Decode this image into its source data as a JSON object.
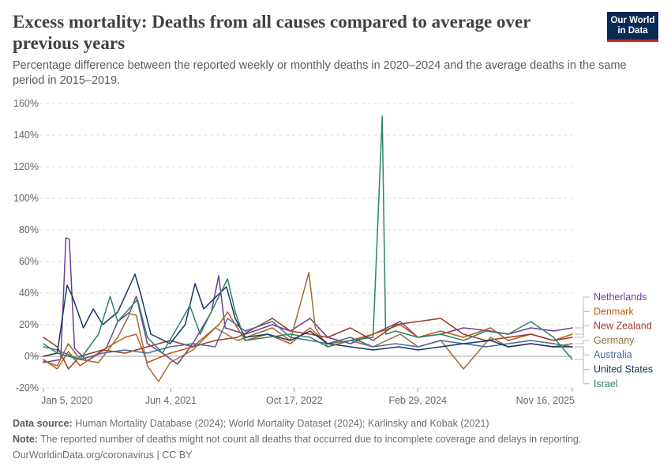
{
  "header": {
    "title": "Excess mortality: Deaths from all causes compared to average over previous years",
    "subtitle": "Percentage difference between the reported weekly or monthly deaths in 2020–2024 and the average deaths in the same period in 2015–2019.",
    "logo_line1": "Our World",
    "logo_line2": "in Data"
  },
  "footer": {
    "source_label": "Data source:",
    "source_text": "Human Mortality Database (2024); World Mortality Dataset (2024); Karlinsky and Kobak (2021)",
    "note_label": "Note:",
    "note_text": "The reported number of deaths might not count all deaths that occurred due to incomplete coverage and delays in reporting.",
    "attribution": "OurWorldinData.org/coronavirus | CC BY"
  },
  "chart_data": {
    "type": "line",
    "x_start": "2020-01-05",
    "x_end": "2025-11-16",
    "x_ticks": [
      {
        "date": "2020-01-05",
        "label": "Jan 5, 2020"
      },
      {
        "date": "2021-06-04",
        "label": "Jun 4, 2021"
      },
      {
        "date": "2022-10-17",
        "label": "Oct 17, 2022"
      },
      {
        "date": "2024-02-29",
        "label": "Feb 29, 2024"
      },
      {
        "date": "2025-11-16",
        "label": "Nov 16, 2025"
      }
    ],
    "y_ticks": [
      -20,
      0,
      20,
      40,
      60,
      80,
      100,
      120,
      140,
      160
    ],
    "y_tick_labels": [
      "-20%",
      "0%",
      "20%",
      "40%",
      "60%",
      "80%",
      "100%",
      "120%",
      "140%",
      "160%"
    ],
    "ylim": [
      -20,
      160
    ],
    "unit": "%",
    "grid": true,
    "legend_position": "right",
    "series": [
      {
        "name": "Netherlands",
        "color": "#6d3e91",
        "points": [
          [
            "2020-01-05",
            -4
          ],
          [
            "2020-03-15",
            -2
          ],
          [
            "2020-04-05",
            75
          ],
          [
            "2020-04-19",
            74
          ],
          [
            "2020-05-10",
            5
          ],
          [
            "2020-07-01",
            -3
          ],
          [
            "2020-09-15",
            5
          ],
          [
            "2020-11-01",
            22
          ],
          [
            "2020-12-20",
            28
          ],
          [
            "2021-01-15",
            38
          ],
          [
            "2021-03-01",
            8
          ],
          [
            "2021-05-01",
            2
          ],
          [
            "2021-07-01",
            -5
          ],
          [
            "2021-09-01",
            8
          ],
          [
            "2021-11-15",
            28
          ],
          [
            "2021-12-15",
            51
          ],
          [
            "2022-01-10",
            18
          ],
          [
            "2022-04-01",
            14
          ],
          [
            "2022-07-20",
            20
          ],
          [
            "2022-10-01",
            16
          ],
          [
            "2022-12-20",
            24
          ],
          [
            "2023-03-01",
            12
          ],
          [
            "2023-06-01",
            8
          ],
          [
            "2023-09-01",
            14
          ],
          [
            "2023-12-20",
            22
          ],
          [
            "2024-03-01",
            12
          ],
          [
            "2024-06-01",
            14
          ],
          [
            "2024-09-01",
            18
          ],
          [
            "2024-12-20",
            16
          ],
          [
            "2025-03-01",
            14
          ],
          [
            "2025-06-01",
            18
          ],
          [
            "2025-09-01",
            16
          ],
          [
            "2025-11-16",
            18
          ]
        ]
      },
      {
        "name": "Denmark",
        "color": "#c05917",
        "points": [
          [
            "2020-01-05",
            -2
          ],
          [
            "2020-03-01",
            -8
          ],
          [
            "2020-04-15",
            3
          ],
          [
            "2020-06-01",
            -6
          ],
          [
            "2020-09-01",
            4
          ],
          [
            "2020-12-01",
            12
          ],
          [
            "2021-01-15",
            14
          ],
          [
            "2021-03-01",
            -4
          ],
          [
            "2021-06-01",
            2
          ],
          [
            "2021-09-01",
            6
          ],
          [
            "2021-12-15",
            20
          ],
          [
            "2022-01-20",
            28
          ],
          [
            "2022-04-01",
            10
          ],
          [
            "2022-07-01",
            14
          ],
          [
            "2022-10-01",
            8
          ],
          [
            "2022-12-20",
            18
          ],
          [
            "2023-03-01",
            8
          ],
          [
            "2023-06-01",
            10
          ],
          [
            "2023-09-01",
            14
          ],
          [
            "2023-12-20",
            20
          ],
          [
            "2024-03-01",
            12
          ],
          [
            "2024-06-01",
            16
          ],
          [
            "2024-09-01",
            12
          ],
          [
            "2024-12-20",
            18
          ],
          [
            "2025-03-01",
            10
          ],
          [
            "2025-06-01",
            14
          ],
          [
            "2025-09-01",
            10
          ],
          [
            "2025-11-16",
            14
          ]
        ]
      },
      {
        "name": "New Zealand",
        "color": "#9a3b2d",
        "points": [
          [
            "2020-01-05",
            12
          ],
          [
            "2020-03-01",
            6
          ],
          [
            "2020-04-15",
            -8
          ],
          [
            "2020-06-01",
            0
          ],
          [
            "2020-09-01",
            4
          ],
          [
            "2020-12-01",
            2
          ],
          [
            "2021-03-01",
            6
          ],
          [
            "2021-06-01",
            10
          ],
          [
            "2021-09-01",
            6
          ],
          [
            "2021-12-01",
            10
          ],
          [
            "2022-03-01",
            12
          ],
          [
            "2022-07-20",
            24
          ],
          [
            "2022-10-01",
            16
          ],
          [
            "2022-12-20",
            14
          ],
          [
            "2023-03-01",
            12
          ],
          [
            "2023-06-01",
            18
          ],
          [
            "2023-09-01",
            10
          ],
          [
            "2023-12-01",
            20
          ],
          [
            "2024-03-01",
            22
          ],
          [
            "2024-06-01",
            24
          ],
          [
            "2024-09-01",
            14
          ],
          [
            "2024-12-01",
            10
          ],
          [
            "2025-03-01",
            12
          ],
          [
            "2025-06-01",
            14
          ],
          [
            "2025-09-01",
            10
          ],
          [
            "2025-11-16",
            12
          ]
        ]
      },
      {
        "name": "Germany",
        "color": "#996d39",
        "points": [
          [
            "2020-01-05",
            -3
          ],
          [
            "2020-03-01",
            -6
          ],
          [
            "2020-04-15",
            8
          ],
          [
            "2020-06-01",
            -2
          ],
          [
            "2020-08-15",
            -4
          ],
          [
            "2020-11-01",
            12
          ],
          [
            "2020-12-20",
            27
          ],
          [
            "2021-01-15",
            26
          ],
          [
            "2021-03-01",
            -6
          ],
          [
            "2021-04-15",
            -16
          ],
          [
            "2021-06-01",
            -4
          ],
          [
            "2021-09-01",
            4
          ],
          [
            "2021-12-01",
            18
          ],
          [
            "2022-03-01",
            10
          ],
          [
            "2022-07-20",
            18
          ],
          [
            "2022-10-01",
            10
          ],
          [
            "2022-12-15",
            53
          ],
          [
            "2023-01-10",
            18
          ],
          [
            "2023-03-01",
            6
          ],
          [
            "2023-06-01",
            10
          ],
          [
            "2023-09-01",
            6
          ],
          [
            "2023-12-20",
            14
          ],
          [
            "2024-03-01",
            6
          ],
          [
            "2024-06-01",
            10
          ],
          [
            "2024-09-01",
            -8
          ],
          [
            "2024-12-20",
            12
          ],
          [
            "2025-03-01",
            6
          ],
          [
            "2025-06-01",
            8
          ],
          [
            "2025-09-01",
            6
          ],
          [
            "2025-11-16",
            8
          ]
        ]
      },
      {
        "name": "Australia",
        "color": "#4c6a9c",
        "points": [
          [
            "2020-01-05",
            6
          ],
          [
            "2020-03-01",
            4
          ],
          [
            "2020-06-01",
            -2
          ],
          [
            "2020-09-01",
            2
          ],
          [
            "2020-12-01",
            4
          ],
          [
            "2021-03-01",
            2
          ],
          [
            "2021-06-01",
            6
          ],
          [
            "2021-09-01",
            8
          ],
          [
            "2021-12-01",
            6
          ],
          [
            "2022-01-20",
            24
          ],
          [
            "2022-04-01",
            16
          ],
          [
            "2022-07-20",
            22
          ],
          [
            "2022-10-01",
            12
          ],
          [
            "2022-12-20",
            10
          ],
          [
            "2023-03-01",
            8
          ],
          [
            "2023-06-01",
            12
          ],
          [
            "2023-09-01",
            6
          ],
          [
            "2023-12-01",
            8
          ],
          [
            "2024-03-01",
            6
          ],
          [
            "2024-06-01",
            10
          ],
          [
            "2024-09-01",
            8
          ],
          [
            "2024-12-01",
            6
          ],
          [
            "2025-03-01",
            8
          ],
          [
            "2025-06-01",
            10
          ],
          [
            "2025-09-01",
            8
          ],
          [
            "2025-11-16",
            6
          ]
        ]
      },
      {
        "name": "United States",
        "color": "#18375f",
        "points": [
          [
            "2020-01-05",
            0
          ],
          [
            "2020-03-01",
            2
          ],
          [
            "2020-04-10",
            45
          ],
          [
            "2020-05-01",
            38
          ],
          [
            "2020-06-15",
            18
          ],
          [
            "2020-07-25",
            30
          ],
          [
            "2020-09-01",
            20
          ],
          [
            "2020-11-01",
            28
          ],
          [
            "2021-01-10",
            52
          ],
          [
            "2021-02-01",
            40
          ],
          [
            "2021-03-15",
            14
          ],
          [
            "2021-06-01",
            8
          ],
          [
            "2021-08-01",
            20
          ],
          [
            "2021-09-10",
            46
          ],
          [
            "2021-10-15",
            30
          ],
          [
            "2022-01-15",
            44
          ],
          [
            "2022-02-20",
            24
          ],
          [
            "2022-04-01",
            12
          ],
          [
            "2022-07-01",
            14
          ],
          [
            "2022-10-01",
            10
          ],
          [
            "2022-12-20",
            16
          ],
          [
            "2023-03-01",
            8
          ],
          [
            "2023-06-01",
            6
          ],
          [
            "2023-09-01",
            4
          ],
          [
            "2023-12-15",
            6
          ],
          [
            "2024-03-01",
            4
          ],
          [
            "2024-06-01",
            6
          ],
          [
            "2024-09-01",
            8
          ],
          [
            "2024-12-20",
            10
          ],
          [
            "2025-03-01",
            6
          ],
          [
            "2025-06-01",
            8
          ],
          [
            "2025-09-01",
            6
          ],
          [
            "2025-11-16",
            6
          ]
        ]
      },
      {
        "name": "Israel",
        "color": "#2c8465",
        "points": [
          [
            "2020-01-05",
            8
          ],
          [
            "2020-03-01",
            2
          ],
          [
            "2020-06-01",
            -2
          ],
          [
            "2020-08-15",
            14
          ],
          [
            "2020-10-01",
            38
          ],
          [
            "2020-11-01",
            22
          ],
          [
            "2021-01-20",
            36
          ],
          [
            "2021-03-01",
            12
          ],
          [
            "2021-05-01",
            2
          ],
          [
            "2021-08-20",
            32
          ],
          [
            "2021-10-01",
            14
          ],
          [
            "2022-01-20",
            49
          ],
          [
            "2022-02-20",
            28
          ],
          [
            "2022-04-01",
            10
          ],
          [
            "2022-07-01",
            12
          ],
          [
            "2022-10-01",
            14
          ],
          [
            "2022-12-20",
            12
          ],
          [
            "2023-03-01",
            6
          ],
          [
            "2023-06-01",
            10
          ],
          [
            "2023-09-01",
            12
          ],
          [
            "2023-10-08",
            152
          ],
          [
            "2023-10-22",
            14
          ],
          [
            "2023-12-01",
            16
          ],
          [
            "2024-03-01",
            12
          ],
          [
            "2024-06-01",
            14
          ],
          [
            "2024-09-01",
            10
          ],
          [
            "2024-12-01",
            16
          ],
          [
            "2025-03-01",
            14
          ],
          [
            "2025-06-01",
            22
          ],
          [
            "2025-09-01",
            12
          ],
          [
            "2025-11-16",
            -2
          ]
        ]
      }
    ]
  }
}
